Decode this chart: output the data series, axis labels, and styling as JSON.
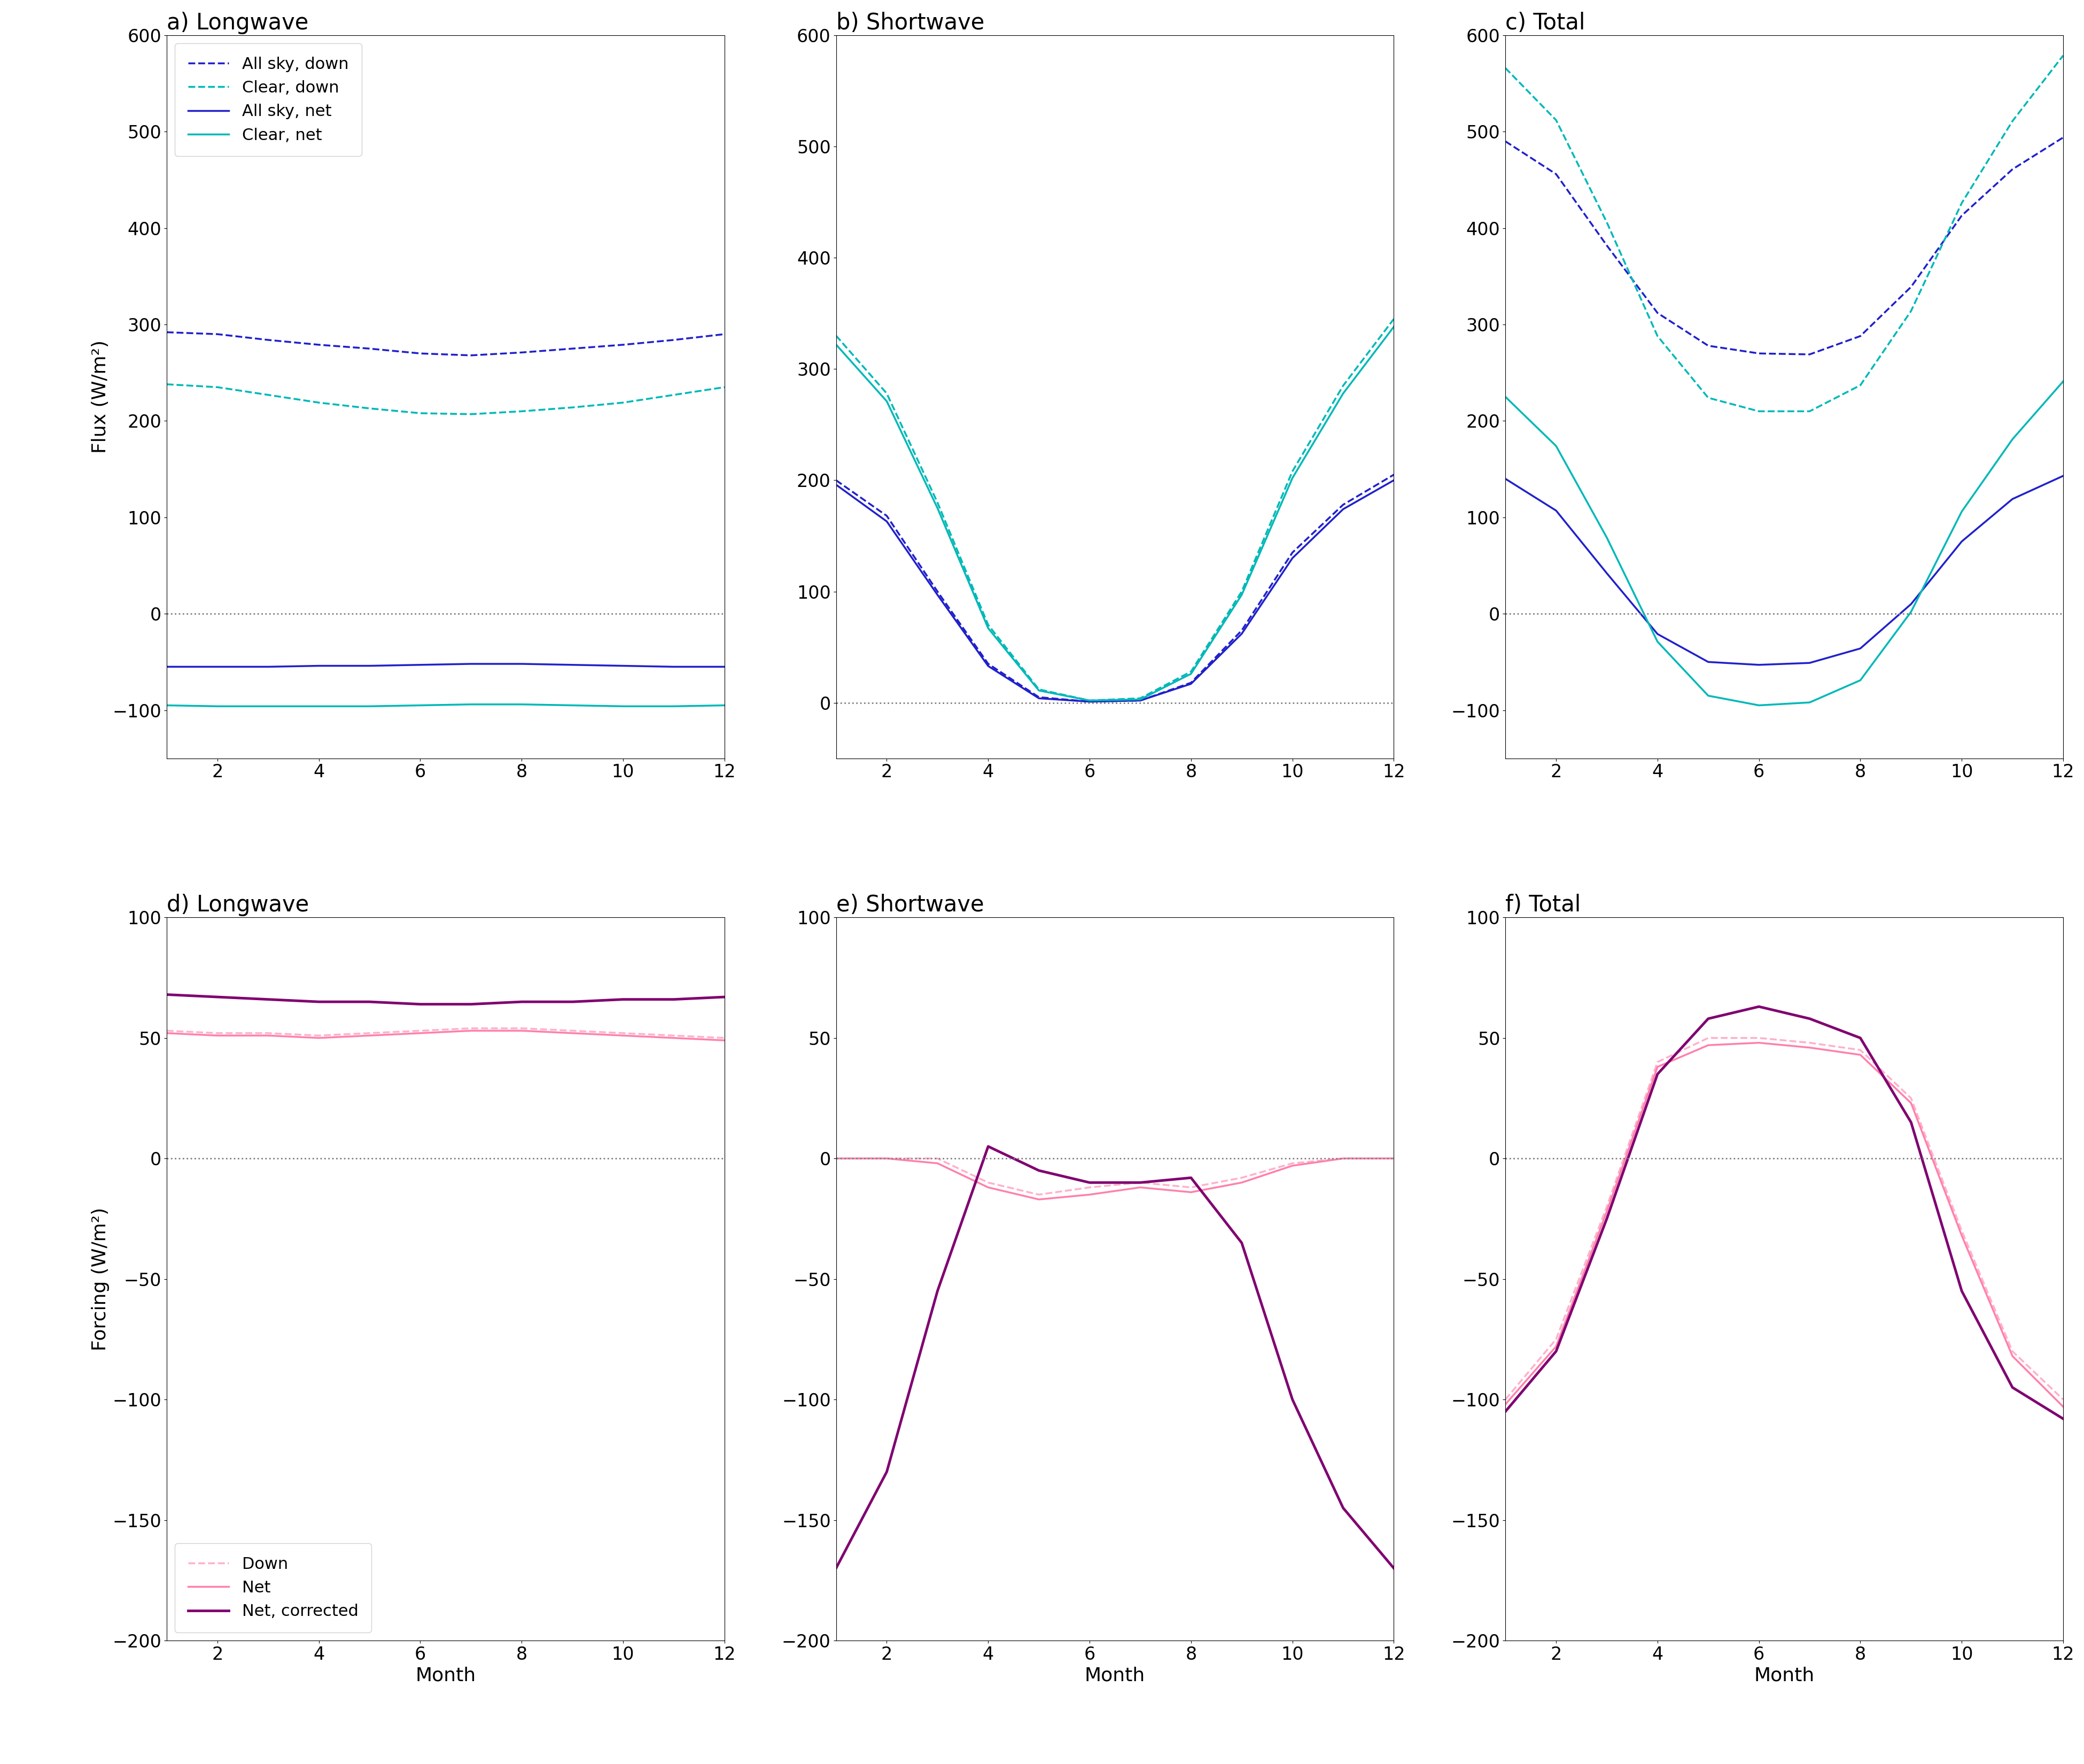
{
  "months": [
    1,
    2,
    3,
    4,
    5,
    6,
    7,
    8,
    9,
    10,
    11,
    12
  ],
  "top_panels": {
    "a_longwave": {
      "title": "a) Longwave",
      "all_sky_down": [
        292,
        290,
        284,
        279,
        275,
        270,
        268,
        271,
        275,
        279,
        284,
        290
      ],
      "clear_down": [
        238,
        235,
        227,
        219,
        213,
        208,
        207,
        210,
        214,
        219,
        227,
        235
      ],
      "all_sky_net": [
        -55,
        -55,
        -55,
        -54,
        -54,
        -53,
        -52,
        -52,
        -53,
        -54,
        -55,
        -55
      ],
      "clear_net": [
        -95,
        -96,
        -96,
        -96,
        -96,
        -95,
        -94,
        -94,
        -95,
        -96,
        -96,
        -95
      ],
      "ylim": [
        -150,
        600
      ],
      "yticks": [
        -100,
        0,
        100,
        200,
        300,
        400,
        500,
        600
      ]
    },
    "b_shortwave": {
      "title": "b) Shortwave",
      "all_sky_down": [
        200,
        168,
        100,
        35,
        5,
        1,
        2,
        18,
        65,
        135,
        178,
        205
      ],
      "clear_down": [
        330,
        278,
        180,
        70,
        12,
        2,
        4,
        28,
        100,
        208,
        285,
        345
      ],
      "all_sky_net": [
        196,
        163,
        97,
        33,
        4,
        1,
        2,
        17,
        62,
        130,
        174,
        200
      ],
      "clear_net": [
        322,
        271,
        175,
        67,
        11,
        2,
        3,
        26,
        97,
        202,
        278,
        338
      ],
      "ylim": [
        -50,
        600
      ],
      "yticks": [
        0,
        100,
        200,
        300,
        400,
        500,
        600
      ]
    },
    "c_total": {
      "title": "c) Total",
      "all_sky_down": [
        490,
        456,
        382,
        312,
        278,
        270,
        269,
        288,
        339,
        413,
        461,
        494
      ],
      "clear_down": [
        566,
        512,
        406,
        288,
        224,
        210,
        210,
        237,
        314,
        426,
        511,
        579
      ],
      "all_sky_net": [
        140,
        107,
        42,
        -21,
        -50,
        -53,
        -51,
        -36,
        10,
        75,
        119,
        143
      ],
      "clear_net": [
        225,
        174,
        79,
        -29,
        -85,
        -95,
        -92,
        -69,
        2,
        106,
        181,
        241
      ],
      "ylim": [
        -150,
        600
      ],
      "yticks": [
        -100,
        0,
        100,
        200,
        300,
        400,
        500,
        600
      ]
    }
  },
  "bottom_panels": {
    "d_longwave": {
      "title": "d) Longwave",
      "down": [
        53,
        52,
        52,
        51,
        52,
        53,
        54,
        54,
        53,
        52,
        51,
        50
      ],
      "net": [
        52,
        51,
        51,
        50,
        51,
        52,
        53,
        53,
        52,
        51,
        50,
        49
      ],
      "net_corrected": [
        68,
        67,
        66,
        65,
        65,
        64,
        64,
        65,
        65,
        66,
        66,
        67
      ],
      "ylim": [
        -200,
        100
      ],
      "yticks": [
        -200,
        -150,
        -100,
        -50,
        0,
        50,
        100
      ]
    },
    "e_shortwave": {
      "title": "e) Shortwave",
      "down": [
        0,
        0,
        0,
        -10,
        -15,
        -12,
        -10,
        -12,
        -8,
        -2,
        0,
        0
      ],
      "net": [
        0,
        0,
        -2,
        -12,
        -17,
        -15,
        -12,
        -14,
        -10,
        -3,
        0,
        0
      ],
      "net_corrected": [
        -170,
        -130,
        -55,
        5,
        -5,
        -10,
        -10,
        -8,
        -35,
        -100,
        -145,
        -170
      ],
      "ylim": [
        -200,
        100
      ],
      "yticks": [
        -200,
        -150,
        -100,
        -50,
        0,
        50,
        100
      ]
    },
    "f_total": {
      "title": "f) Total",
      "down": [
        -100,
        -75,
        -20,
        40,
        50,
        50,
        48,
        45,
        25,
        -30,
        -80,
        -100
      ],
      "net": [
        -102,
        -78,
        -22,
        38,
        47,
        48,
        46,
        43,
        23,
        -32,
        -82,
        -103
      ],
      "net_corrected": [
        -105,
        -80,
        -25,
        35,
        58,
        63,
        58,
        50,
        15,
        -55,
        -95,
        -108
      ],
      "ylim": [
        -200,
        100
      ],
      "yticks": [
        -200,
        -150,
        -100,
        -50,
        0,
        50,
        100
      ]
    }
  },
  "colors": {
    "blue": "#2020cc",
    "cyan": "#00b8b8",
    "pink_dashed": "#ffb0cc",
    "pink_solid": "#ff80aa",
    "purple": "#800070"
  },
  "top_legend_labels": [
    "All sky, down",
    "Clear, down",
    "All sky, net",
    "Clear, net"
  ],
  "bottom_legend_labels": [
    "Down",
    "Net",
    "Net, corrected"
  ],
  "xlabel": "Month",
  "top_ylabel": "Flux (W/m²)",
  "bottom_ylabel": "Forcing (W/m²)",
  "top_xticks": [
    2,
    4,
    6,
    8,
    10,
    12
  ],
  "bottom_xticks": [
    2,
    4,
    6,
    8,
    10,
    12
  ]
}
